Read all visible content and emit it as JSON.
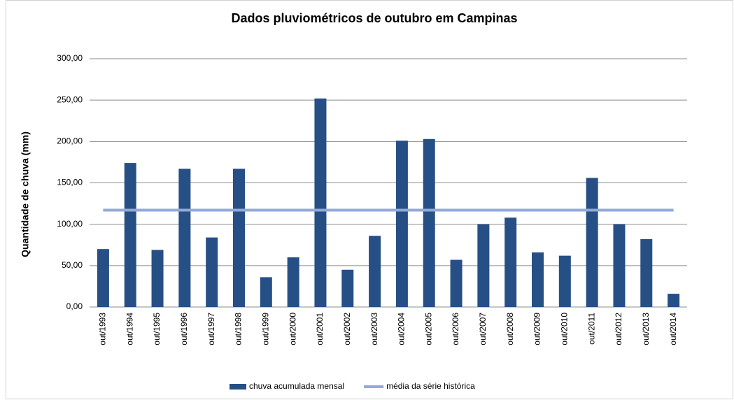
{
  "chart_data": {
    "type": "bar",
    "title": "Dados pluviométricos de outubro em Campinas",
    "y_label": "Quantidade de chuva (mm)",
    "categories": [
      "out/1993",
      "out/1994",
      "out/1995",
      "out/1996",
      "out/1997",
      "out/1998",
      "out/1999",
      "out/2000",
      "out/2001",
      "out/2002",
      "out/2003",
      "out/2004",
      "out/2005",
      "out/2006",
      "out/2007",
      "out/2008",
      "out/2009",
      "out/2010",
      "out/2011",
      "out/2012",
      "out/2013",
      "out/2014"
    ],
    "series": [
      {
        "name": "chuva acumulada mensal",
        "type": "bar",
        "color": "#264f86",
        "values": [
          70,
          174,
          69,
          167,
          84,
          167,
          36,
          60,
          252,
          45,
          86,
          201,
          203,
          57,
          100,
          108,
          66,
          62,
          156,
          100,
          82,
          16
        ]
      },
      {
        "name": "média da série histórica",
        "type": "line",
        "color": "#93aad6",
        "values": [
          117,
          117,
          117,
          117,
          117,
          117,
          117,
          117,
          117,
          117,
          117,
          117,
          117,
          117,
          117,
          117,
          117,
          117,
          117,
          117,
          117,
          117
        ]
      }
    ],
    "ylim": [
      0,
      300
    ],
    "yticks": [
      {
        "value": 0,
        "label": "0,00"
      },
      {
        "value": 50,
        "label": "50,00"
      },
      {
        "value": 100,
        "label": "100,00"
      },
      {
        "value": 150,
        "label": "150,00"
      },
      {
        "value": 200,
        "label": "200,00"
      },
      {
        "value": 250,
        "label": "250,00"
      },
      {
        "value": 300,
        "label": "300,00"
      }
    ],
    "grid": true,
    "legend": "bottom"
  }
}
